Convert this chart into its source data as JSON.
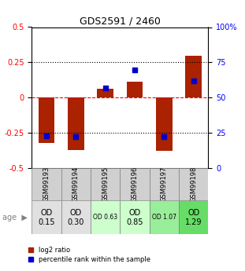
{
  "title": "GDS2591 / 2460",
  "samples": [
    "GSM99193",
    "GSM99194",
    "GSM99195",
    "GSM99196",
    "GSM99197",
    "GSM99198"
  ],
  "log2_ratio": [
    -0.32,
    -0.37,
    0.065,
    0.11,
    -0.38,
    0.295
  ],
  "percentile_rank_left": [
    -0.27,
    -0.28,
    0.07,
    0.195,
    -0.275,
    0.12
  ],
  "bar_color": "#aa2200",
  "dot_color": "#0000cc",
  "ylim": [
    -0.5,
    0.5
  ],
  "yticks_left": [
    -0.5,
    -0.25,
    0.0,
    0.25,
    0.5
  ],
  "yticks_right": [
    0,
    25,
    50,
    75,
    100
  ],
  "hlines": [
    -0.25,
    0.0,
    0.25
  ],
  "hline_styles": [
    "dotted",
    "dashed",
    "dotted"
  ],
  "hline_colors": [
    "black",
    "red",
    "black"
  ],
  "age_labels": [
    "OD\n0.15",
    "OD\n0.30",
    "OD 0.63",
    "OD\n0.85",
    "OD 1.07",
    "OD\n1.29"
  ],
  "age_bg_colors": [
    "#e0e0e0",
    "#e0e0e0",
    "#ccffcc",
    "#ccffcc",
    "#99ee99",
    "#66dd66"
  ],
  "age_fontsize_large": [
    true,
    true,
    false,
    true,
    false,
    true
  ],
  "legend_log2": "log2 ratio",
  "legend_pct": "percentile rank within the sample",
  "bar_width": 0.55
}
